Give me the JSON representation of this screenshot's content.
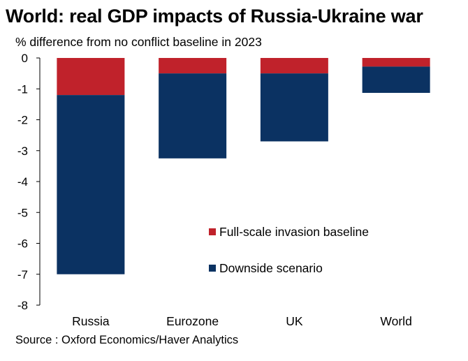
{
  "title": "World: real GDP impacts of Russia-Ukraine war",
  "subtitle": "% difference from no conflict baseline in 2023",
  "source": "Source : Oxford Economics/Haver Analytics",
  "colors": {
    "baseline": "#c0222b",
    "downside": "#0b3262"
  },
  "chart_data": {
    "type": "bar",
    "stacked": true,
    "title": "World: real GDP impacts of Russia-Ukraine war",
    "ylabel": "% difference from no conflict baseline in 2023",
    "xlabel": "",
    "categories": [
      "Russia",
      "Eurozone",
      "UK",
      "World"
    ],
    "ylim": [
      -8,
      0
    ],
    "yticks": [
      0,
      -1,
      -2,
      -3,
      -4,
      -5,
      -6,
      -7,
      -8
    ],
    "grid": false,
    "legend_position": "lower-right",
    "series": [
      {
        "name": "Full-scale invasion baseline",
        "values": [
          -1.2,
          -0.5,
          -0.5,
          -0.28
        ],
        "color": "#c0222b"
      },
      {
        "name": "Downside scenario",
        "values": [
          -5.8,
          -2.75,
          -2.2,
          -0.85
        ],
        "color": "#0b3262"
      }
    ]
  }
}
